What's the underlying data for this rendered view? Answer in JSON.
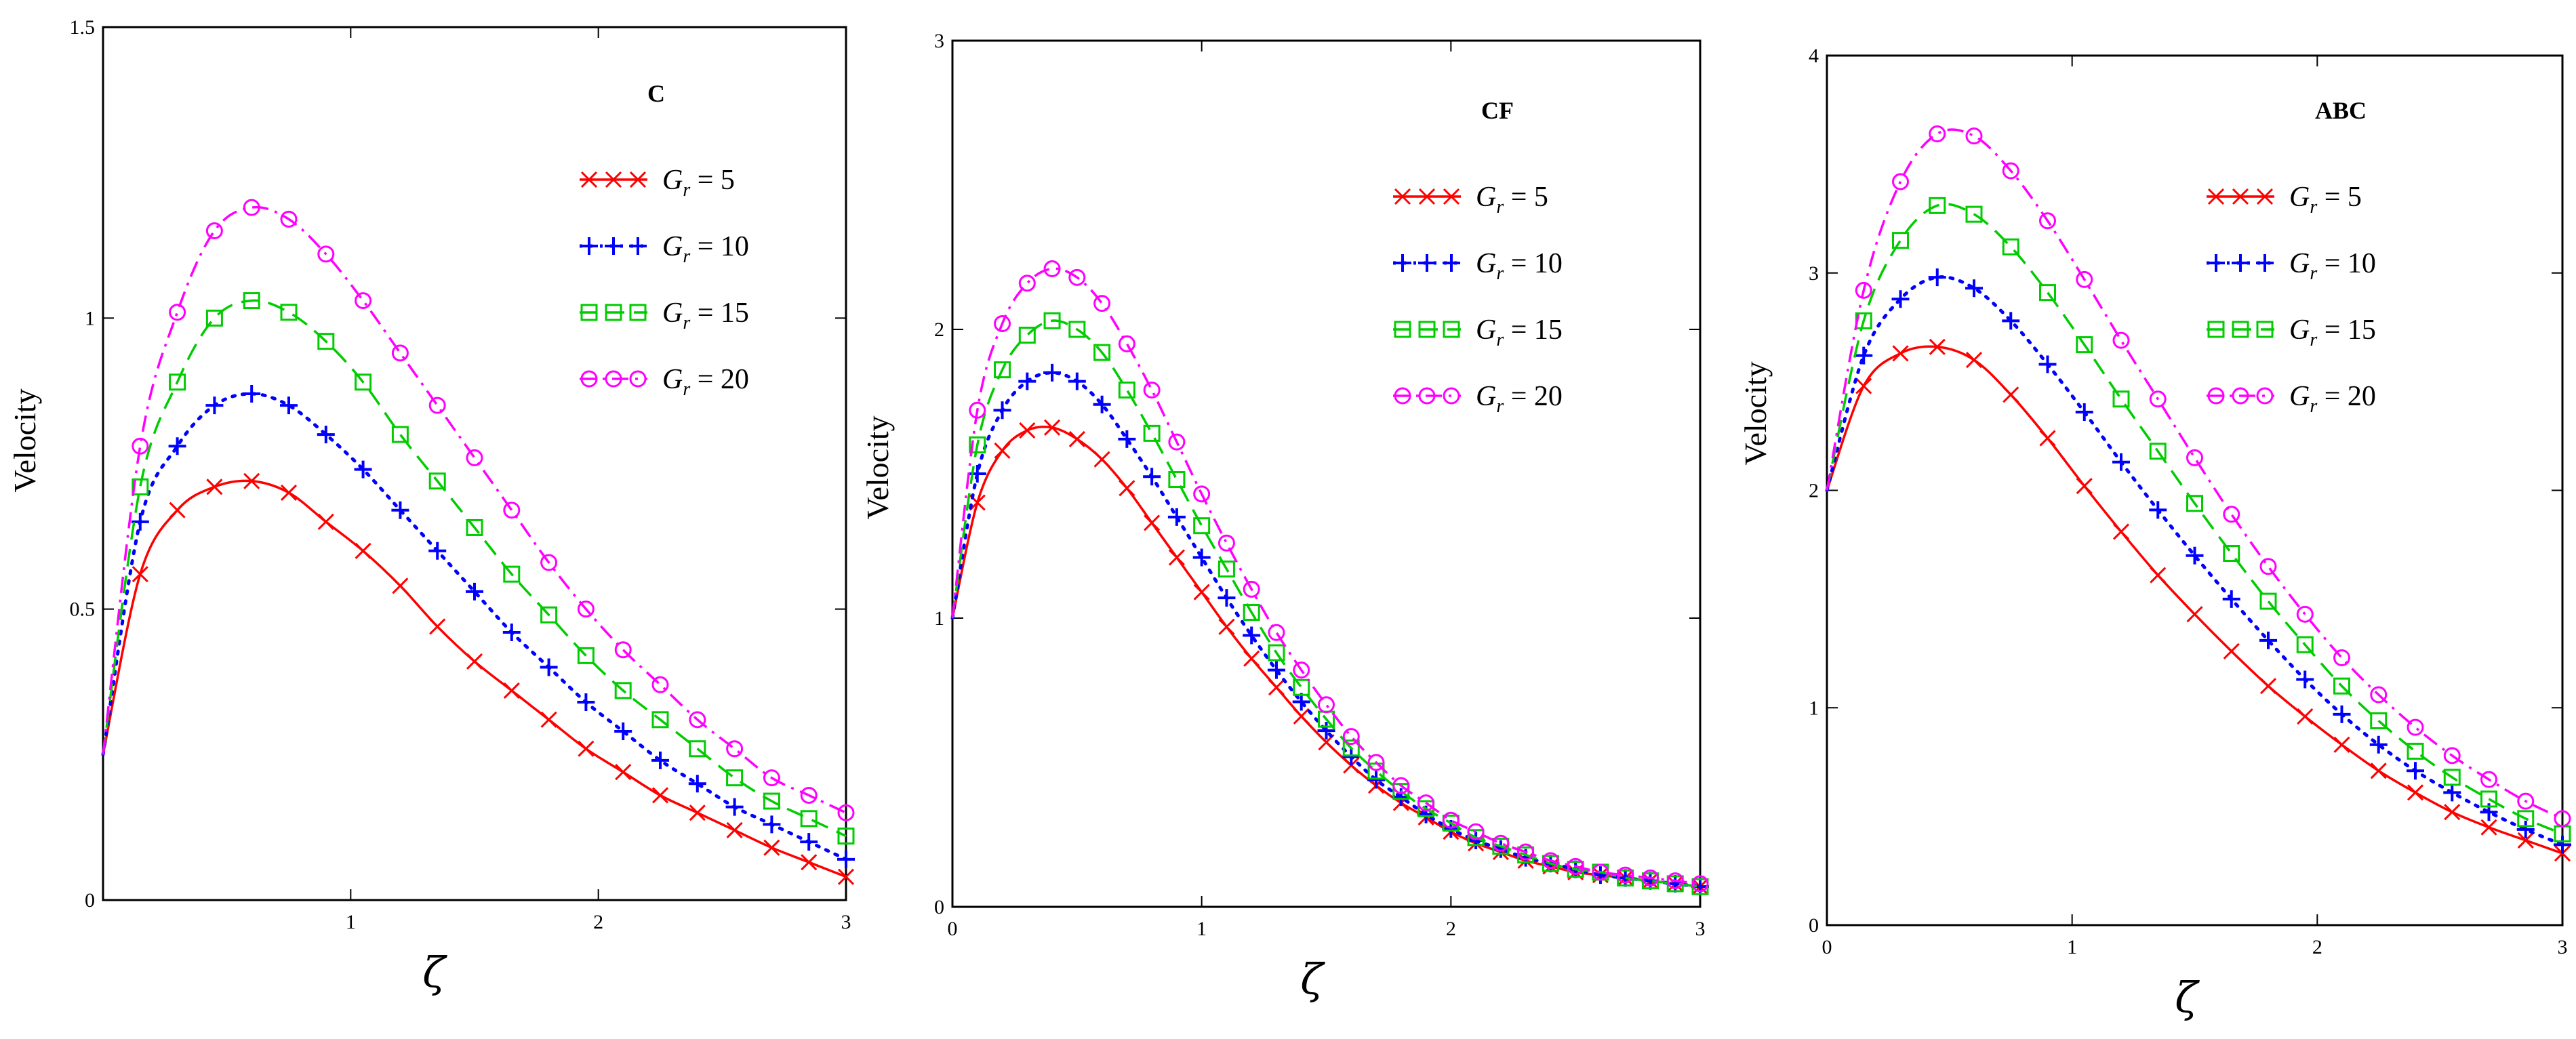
{
  "chart_data": [
    {
      "type": "line",
      "title": "C",
      "xlabel": "ζ",
      "ylabel": "Velocity",
      "xlim": [
        0,
        3
      ],
      "ylim": [
        0,
        1.5
      ],
      "x_ticks": [
        0,
        1,
        2,
        3
      ],
      "x_tick_labels": [
        "",
        "1",
        "2",
        "3"
      ],
      "y_ticks": [
        0,
        0.5,
        1,
        1.5
      ],
      "y_tick_labels": [
        "0",
        "0.5",
        "1",
        "1.5"
      ],
      "x": [
        0,
        0.15,
        0.3,
        0.45,
        0.6,
        0.75,
        0.9,
        1.05,
        1.2,
        1.35,
        1.5,
        1.65,
        1.8,
        1.95,
        2.1,
        2.25,
        2.4,
        2.55,
        2.7,
        2.85,
        3.0
      ],
      "series": [
        {
          "name": "Gr = 5",
          "label_base": "G",
          "label_sub": "r",
          "label_value": "5",
          "color": "#ff0000",
          "marker": "x",
          "dash": "solid",
          "values": [
            0.25,
            0.56,
            0.67,
            0.71,
            0.72,
            0.7,
            0.65,
            0.6,
            0.54,
            0.47,
            0.41,
            0.36,
            0.31,
            0.26,
            0.22,
            0.18,
            0.15,
            0.12,
            0.09,
            0.065,
            0.04
          ]
        },
        {
          "name": "Gr = 10",
          "label_base": "G",
          "label_sub": "r",
          "label_value": "10",
          "color": "#0000ff",
          "marker": "plus",
          "dash": "dot",
          "values": [
            0.25,
            0.65,
            0.78,
            0.85,
            0.87,
            0.85,
            0.8,
            0.74,
            0.67,
            0.6,
            0.53,
            0.46,
            0.4,
            0.34,
            0.29,
            0.24,
            0.2,
            0.16,
            0.13,
            0.1,
            0.07
          ]
        },
        {
          "name": "Gr = 15",
          "label_base": "G",
          "label_sub": "r",
          "label_value": "15",
          "color": "#00cc00",
          "marker": "square",
          "dash": "dash",
          "values": [
            0.25,
            0.71,
            0.89,
            1.0,
            1.03,
            1.01,
            0.96,
            0.89,
            0.8,
            0.72,
            0.64,
            0.56,
            0.49,
            0.42,
            0.36,
            0.31,
            0.26,
            0.21,
            0.17,
            0.14,
            0.11
          ]
        },
        {
          "name": "Gr = 20",
          "label_base": "G",
          "label_sub": "r",
          "label_value": "20",
          "color": "#ff00ff",
          "marker": "circle",
          "dash": "dashdot",
          "values": [
            0.25,
            0.78,
            1.01,
            1.15,
            1.19,
            1.17,
            1.11,
            1.03,
            0.94,
            0.85,
            0.76,
            0.67,
            0.58,
            0.5,
            0.43,
            0.37,
            0.31,
            0.26,
            0.21,
            0.18,
            0.15
          ]
        }
      ]
    },
    {
      "type": "line",
      "title": "CF",
      "xlabel": "ζ",
      "ylabel": "Velocity",
      "xlim": [
        0,
        3
      ],
      "ylim": [
        0,
        3
      ],
      "x_ticks": [
        0,
        1,
        2,
        3
      ],
      "x_tick_labels": [
        "0",
        "1",
        "2",
        "3"
      ],
      "y_ticks": [
        0,
        1,
        2,
        3
      ],
      "y_tick_labels": [
        "0",
        "1",
        "2",
        "3"
      ],
      "x": [
        0,
        0.1,
        0.2,
        0.3,
        0.4,
        0.5,
        0.6,
        0.7,
        0.8,
        0.9,
        1.0,
        1.1,
        1.2,
        1.3,
        1.4,
        1.5,
        1.6,
        1.7,
        1.8,
        1.9,
        2.0,
        2.1,
        2.2,
        2.3,
        2.4,
        2.5,
        2.6,
        2.7,
        2.8,
        2.9,
        3.0
      ],
      "series": [
        {
          "name": "Gr = 5",
          "label_base": "G",
          "label_sub": "r",
          "label_value": "5",
          "color": "#ff0000",
          "marker": "x",
          "dash": "solid",
          "values": [
            1.0,
            1.4,
            1.58,
            1.65,
            1.66,
            1.62,
            1.55,
            1.45,
            1.33,
            1.21,
            1.09,
            0.97,
            0.86,
            0.76,
            0.66,
            0.57,
            0.49,
            0.42,
            0.36,
            0.31,
            0.26,
            0.22,
            0.19,
            0.16,
            0.14,
            0.12,
            0.11,
            0.1,
            0.09,
            0.08,
            0.07
          ]
        },
        {
          "name": "Gr = 10",
          "label_base": "G",
          "label_sub": "r",
          "label_value": "10",
          "color": "#0000ff",
          "marker": "plus",
          "dash": "dot",
          "values": [
            1.0,
            1.5,
            1.72,
            1.82,
            1.85,
            1.82,
            1.74,
            1.62,
            1.49,
            1.35,
            1.21,
            1.07,
            0.94,
            0.82,
            0.71,
            0.61,
            0.52,
            0.44,
            0.38,
            0.32,
            0.27,
            0.23,
            0.2,
            0.17,
            0.15,
            0.13,
            0.11,
            0.1,
            0.09,
            0.08,
            0.07
          ]
        },
        {
          "name": "Gr = 15",
          "label_base": "G",
          "label_sub": "r",
          "label_value": "15",
          "color": "#00cc00",
          "marker": "square",
          "dash": "dash",
          "values": [
            1.0,
            1.6,
            1.86,
            1.98,
            2.03,
            2.0,
            1.92,
            1.79,
            1.64,
            1.48,
            1.32,
            1.17,
            1.02,
            0.88,
            0.76,
            0.65,
            0.55,
            0.47,
            0.4,
            0.34,
            0.29,
            0.24,
            0.21,
            0.18,
            0.15,
            0.13,
            0.12,
            0.1,
            0.09,
            0.08,
            0.07
          ]
        },
        {
          "name": "Gr = 20",
          "label_base": "G",
          "label_sub": "r",
          "label_value": "20",
          "color": "#ff00ff",
          "marker": "circle",
          "dash": "dashdot",
          "values": [
            1.0,
            1.72,
            2.02,
            2.16,
            2.21,
            2.18,
            2.09,
            1.95,
            1.79,
            1.61,
            1.43,
            1.26,
            1.1,
            0.95,
            0.82,
            0.7,
            0.59,
            0.5,
            0.42,
            0.36,
            0.3,
            0.26,
            0.22,
            0.19,
            0.16,
            0.14,
            0.12,
            0.11,
            0.1,
            0.09,
            0.08
          ]
        }
      ]
    },
    {
      "type": "line",
      "title": "ABC",
      "xlabel": "ζ",
      "ylabel": "Velocity",
      "xlim": [
        0,
        3
      ],
      "ylim": [
        0,
        4
      ],
      "x_ticks": [
        0,
        1,
        2,
        3
      ],
      "x_tick_labels": [
        "0",
        "1",
        "2",
        "3"
      ],
      "y_ticks": [
        0,
        1,
        2,
        3,
        4
      ],
      "y_tick_labels": [
        "0",
        "1",
        "2",
        "3",
        "4"
      ],
      "x": [
        0,
        0.15,
        0.3,
        0.45,
        0.6,
        0.75,
        0.9,
        1.05,
        1.2,
        1.35,
        1.5,
        1.65,
        1.8,
        1.95,
        2.1,
        2.25,
        2.4,
        2.55,
        2.7,
        2.85,
        3.0
      ],
      "series": [
        {
          "name": "Gr = 5",
          "label_base": "G",
          "label_sub": "r",
          "label_value": "5",
          "color": "#ff0000",
          "marker": "x",
          "dash": "solid",
          "values": [
            2.0,
            2.48,
            2.63,
            2.66,
            2.6,
            2.44,
            2.24,
            2.02,
            1.81,
            1.61,
            1.43,
            1.26,
            1.1,
            0.96,
            0.83,
            0.71,
            0.61,
            0.52,
            0.45,
            0.39,
            0.33
          ]
        },
        {
          "name": "Gr = 10",
          "label_base": "G",
          "label_sub": "r",
          "label_value": "10",
          "color": "#0000ff",
          "marker": "plus",
          "dash": "dot",
          "values": [
            2.0,
            2.62,
            2.88,
            2.98,
            2.93,
            2.78,
            2.58,
            2.36,
            2.13,
            1.91,
            1.7,
            1.5,
            1.31,
            1.13,
            0.97,
            0.83,
            0.71,
            0.61,
            0.52,
            0.44,
            0.37
          ]
        },
        {
          "name": "Gr = 15",
          "label_base": "G",
          "label_sub": "r",
          "label_value": "15",
          "color": "#00cc00",
          "marker": "square",
          "dash": "dash",
          "values": [
            2.0,
            2.78,
            3.15,
            3.31,
            3.27,
            3.12,
            2.91,
            2.67,
            2.42,
            2.18,
            1.94,
            1.71,
            1.49,
            1.29,
            1.1,
            0.94,
            0.8,
            0.68,
            0.58,
            0.49,
            0.42
          ]
        },
        {
          "name": "Gr = 20",
          "label_base": "G",
          "label_sub": "r",
          "label_value": "20",
          "color": "#ff00ff",
          "marker": "circle",
          "dash": "dashdot",
          "values": [
            2.0,
            2.92,
            3.42,
            3.64,
            3.63,
            3.47,
            3.24,
            2.97,
            2.69,
            2.42,
            2.15,
            1.89,
            1.65,
            1.43,
            1.23,
            1.06,
            0.91,
            0.78,
            0.67,
            0.57,
            0.49
          ]
        }
      ]
    }
  ]
}
